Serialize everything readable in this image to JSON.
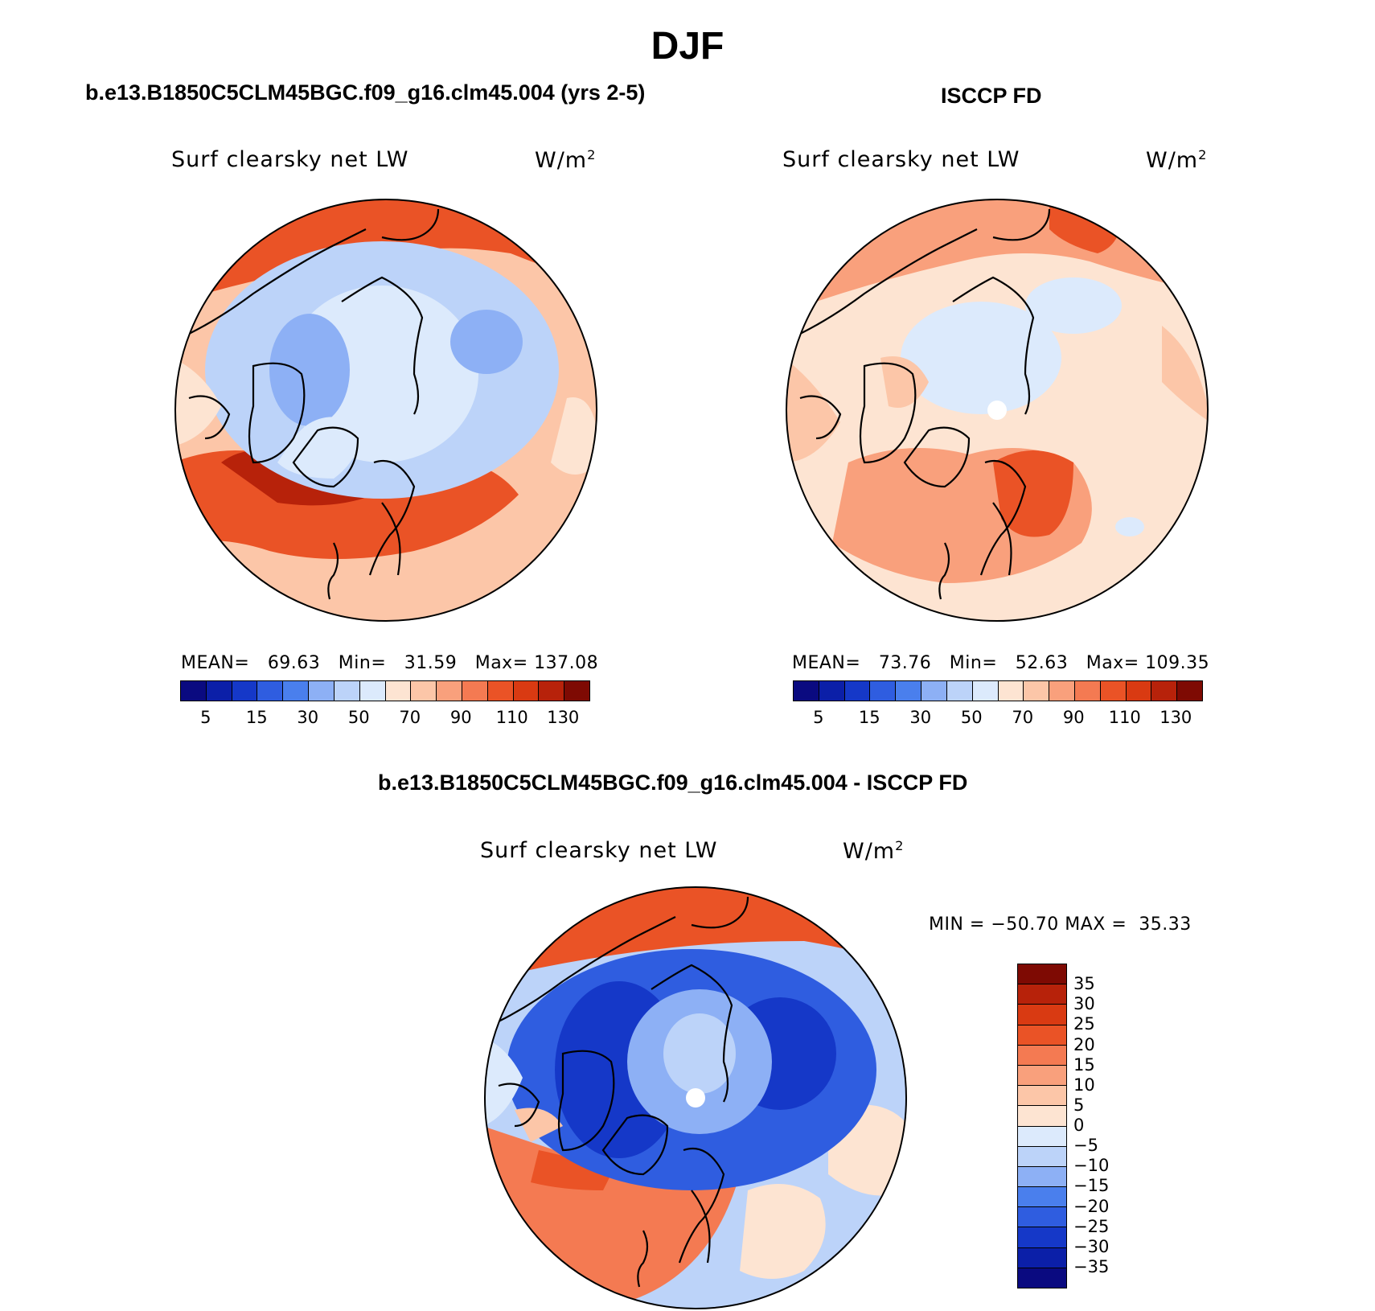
{
  "main_title": "DJF",
  "panels": [
    {
      "title": "b.e13.B1850C5CLM45BGC.f09_g16.clm45.004 (yrs 2-5)",
      "variable": "Surf clearsky net LW",
      "units": "W/m",
      "units_sup": "2",
      "stats": {
        "mean_label": "MEAN=",
        "mean": "69.63",
        "min_label": "Min=",
        "min": "31.59",
        "max_label": "Max=",
        "max": "137.08"
      }
    },
    {
      "title": "ISCCP FD",
      "variable": "Surf clearsky net LW",
      "units": "W/m",
      "units_sup": "2",
      "stats": {
        "mean_label": "MEAN=",
        "mean": "73.76",
        "min_label": "Min=",
        "min": "52.63",
        "max_label": "Max=",
        "max": "109.35"
      }
    },
    {
      "title": "b.e13.B1850C5CLM45BGC.f09_g16.clm45.004 - ISCCP FD",
      "variable": "Surf clearsky net LW",
      "units": "W/m",
      "units_sup": "2",
      "minmax_text": "MIN = −50.70 MAX =  35.33"
    }
  ],
  "colorbar_abs": {
    "colors": [
      "#0a0a80",
      "#0b1fa8",
      "#1538c8",
      "#2f5de0",
      "#4a7fed",
      "#8db0f5",
      "#bcd3f9",
      "#dceafc",
      "#fde4d2",
      "#fcc6a8",
      "#f9a07c",
      "#f47a52",
      "#ea5326",
      "#d93a12",
      "#b7220a",
      "#7e0a03"
    ],
    "tick_labels": [
      "5",
      "15",
      "30",
      "50",
      "70",
      "90",
      "110",
      "130"
    ]
  },
  "colorbar_diff": {
    "colors": [
      "#7e0a03",
      "#b7220a",
      "#d93a12",
      "#ea5326",
      "#f47a52",
      "#f9a07c",
      "#fcc6a8",
      "#fde4d2",
      "#dceafc",
      "#bcd3f9",
      "#8db0f5",
      "#4a7fed",
      "#2f5de0",
      "#1538c8",
      "#0b1fa8",
      "#0a0a80"
    ],
    "tick_labels": [
      "35",
      "30",
      "25",
      "20",
      "15",
      "10",
      "5",
      "0",
      "−5",
      "−10",
      "−15",
      "−20",
      "−25",
      "−30",
      "−35"
    ]
  }
}
